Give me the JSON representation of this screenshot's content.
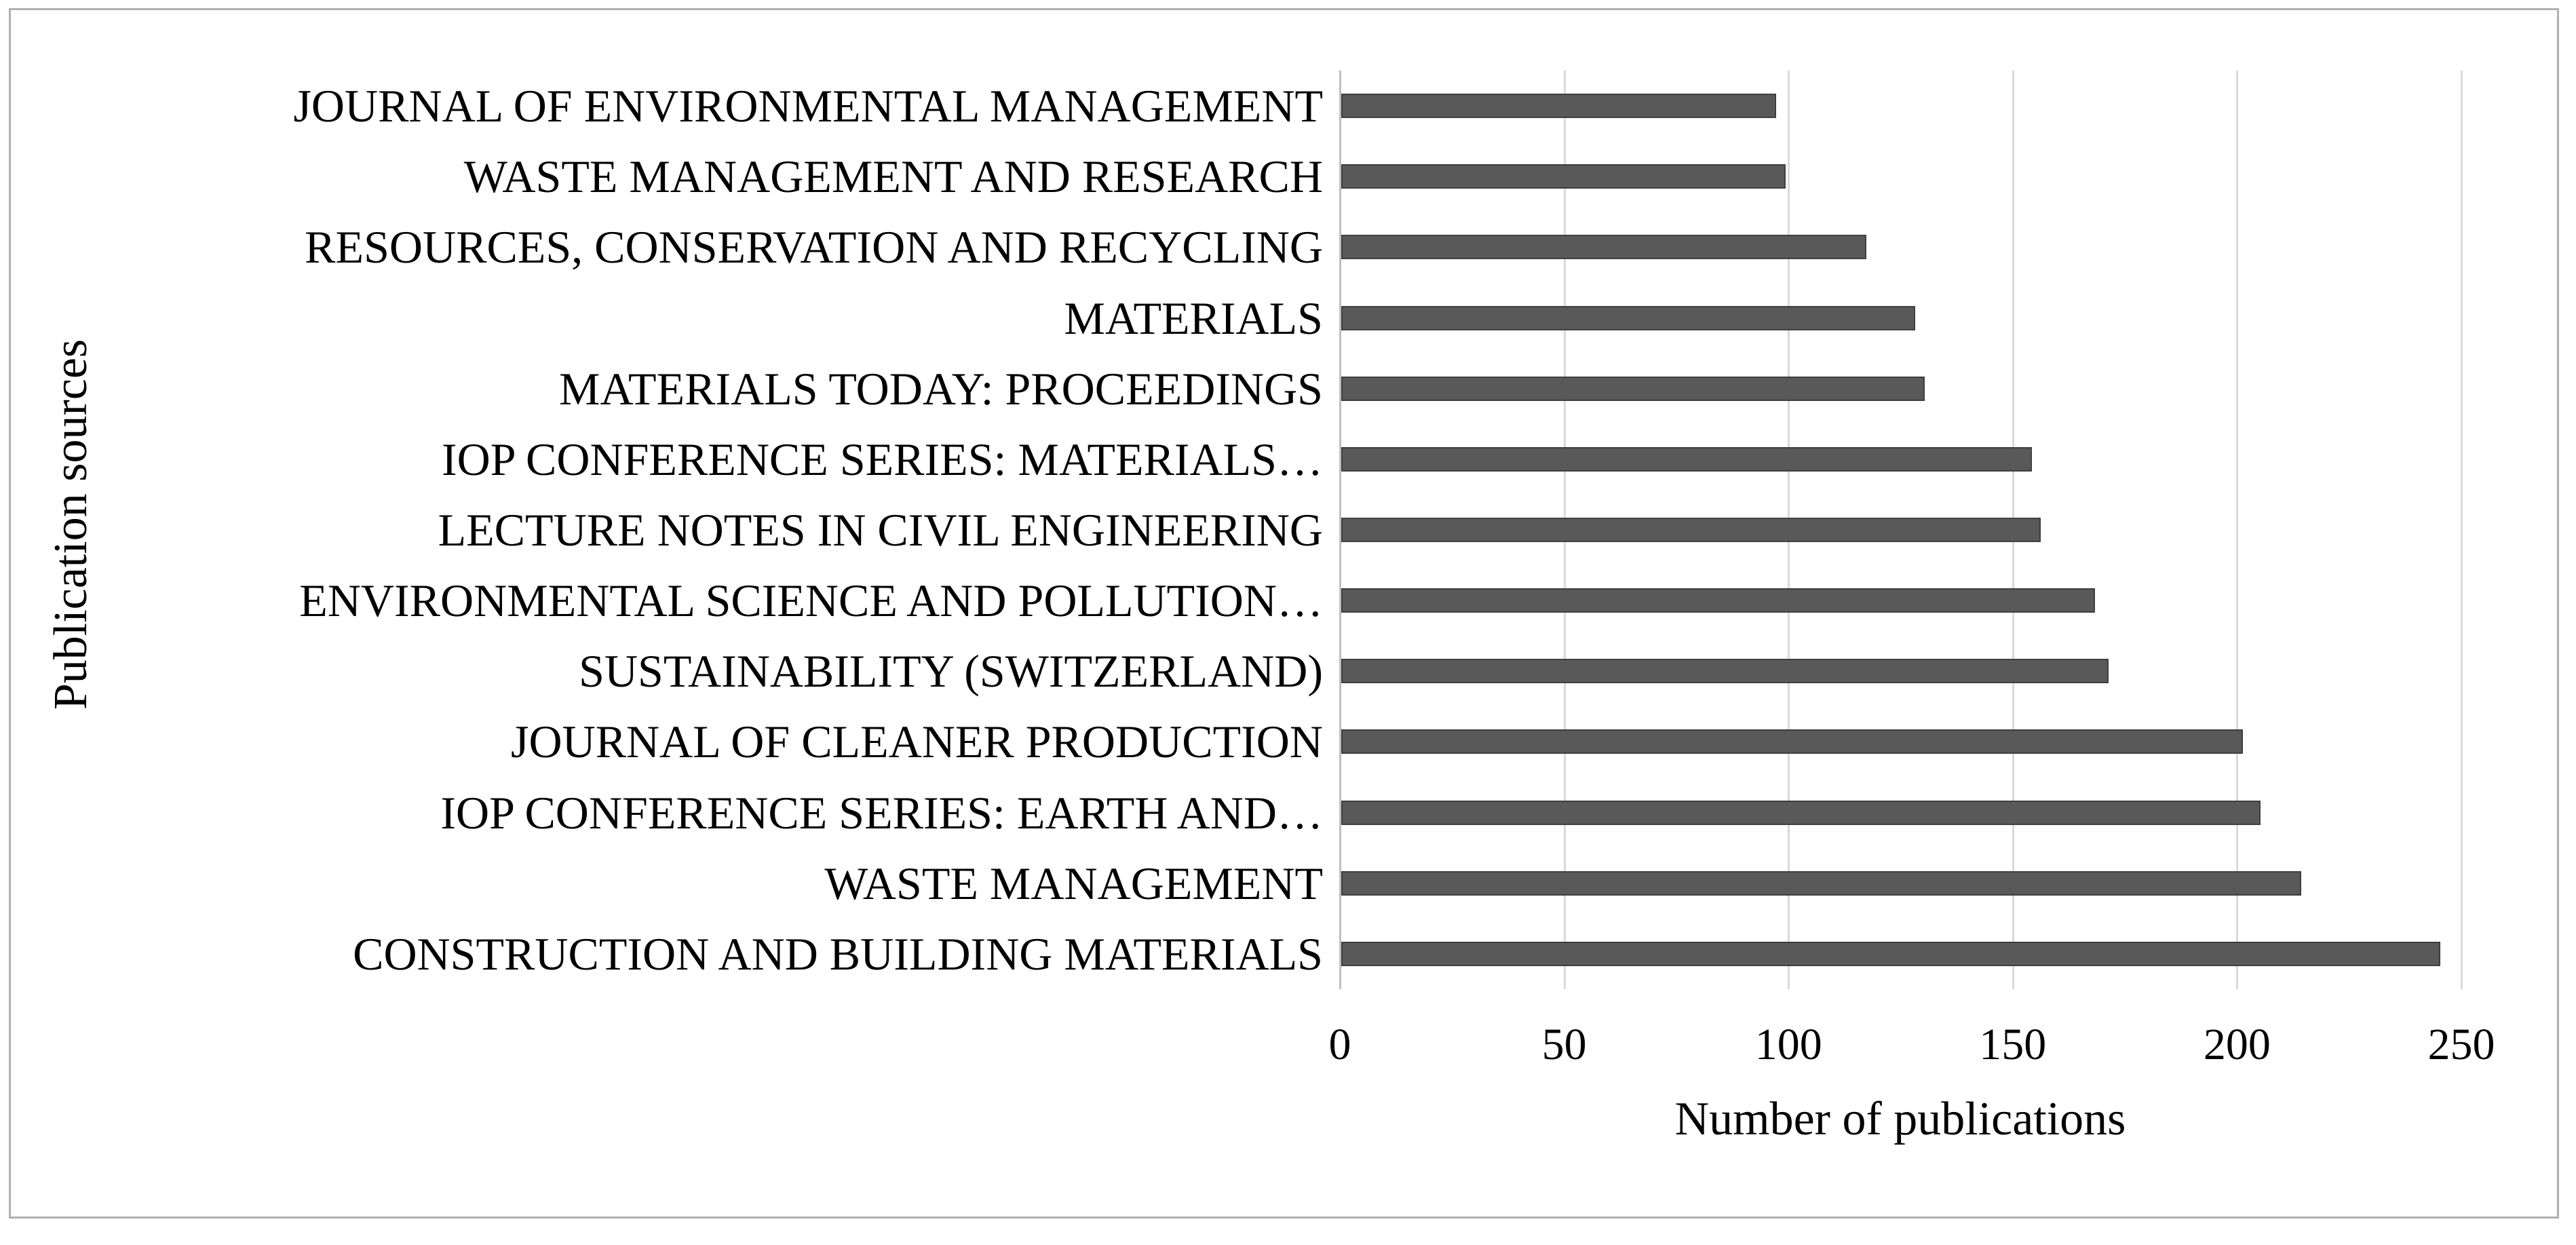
{
  "figure": {
    "kind": "horizontal bar chart figure",
    "background": "#ffffff",
    "border_color": "#b0b0b0"
  },
  "chart_data": {
    "type": "bar",
    "orientation": "horizontal",
    "title": "",
    "xlabel": "Number of publications",
    "ylabel": "Publication sources",
    "xlim": [
      0,
      250
    ],
    "x_ticks": [
      0,
      50,
      100,
      150,
      200,
      250
    ],
    "grid": "vertical gridlines at each x tick, light gray",
    "legend": "none",
    "bar_color": "#595959",
    "bar_border_color": "#3f3f3f",
    "gridline_color": "#d9d9d9",
    "categories": [
      "JOURNAL OF ENVIRONMENTAL MANAGEMENT",
      "WASTE MANAGEMENT AND RESEARCH",
      "RESOURCES, CONSERVATION AND RECYCLING",
      "MATERIALS",
      "MATERIALS TODAY: PROCEEDINGS",
      "IOP CONFERENCE SERIES: MATERIALS…",
      "LECTURE NOTES IN CIVIL ENGINEERING",
      "ENVIRONMENTAL SCIENCE AND POLLUTION…",
      "SUSTAINABILITY (SWITZERLAND)",
      "JOURNAL OF CLEANER PRODUCTION",
      "IOP CONFERENCE SERIES: EARTH AND…",
      "WASTE MANAGEMENT",
      "CONSTRUCTION AND BUILDING MATERIALS"
    ],
    "values": [
      97,
      99,
      117,
      128,
      130,
      154,
      156,
      168,
      171,
      201,
      205,
      214,
      245
    ]
  }
}
